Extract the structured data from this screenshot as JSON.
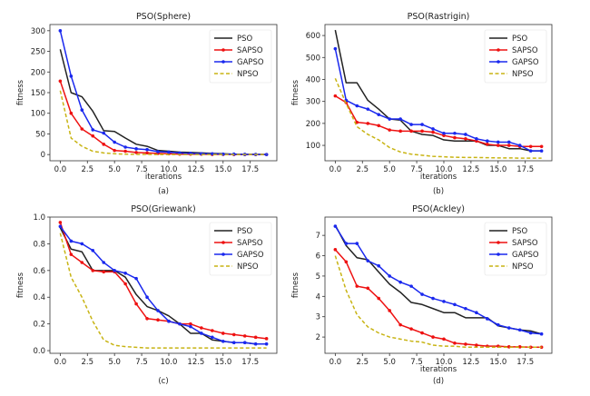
{
  "chart_data": [
    {
      "type": "line",
      "title": "PSO(Sphere)",
      "xlabel": "iterations",
      "ylabel": "fitness",
      "caption": "(a)",
      "xlim": [
        -0.95,
        19.95
      ],
      "ylim": [
        -15,
        315
      ],
      "xticks": [
        0.0,
        2.5,
        5.0,
        7.5,
        10.0,
        12.5,
        15.0,
        17.5
      ],
      "xtick_labels": [
        "0.0",
        "2.5",
        "5.0",
        "7.5",
        "10.0",
        "12.5",
        "15.0",
        "17.5"
      ],
      "yticks": [
        0,
        50,
        100,
        150,
        200,
        250,
        300
      ],
      "ytick_labels": [
        "0",
        "50",
        "100",
        "150",
        "200",
        "250",
        "300"
      ],
      "legend_position": "upper right",
      "x": [
        0,
        1,
        2,
        3,
        4,
        5,
        6,
        7,
        8,
        9,
        10,
        11,
        12,
        13,
        14,
        15,
        16,
        17,
        18,
        19
      ],
      "series": [
        {
          "name": "PSO",
          "color": "#222222",
          "style": "solid",
          "marker": "none",
          "values": [
            255,
            150,
            140,
            105,
            58,
            56,
            40,
            25,
            20,
            10,
            8,
            6,
            5,
            4,
            3,
            2,
            1,
            0.5,
            0.3,
            0
          ]
        },
        {
          "name": "SAPSO",
          "color": "#ee1111",
          "style": "solid",
          "marker": "dot",
          "values": [
            178,
            100,
            62,
            45,
            25,
            10,
            8,
            5,
            4,
            3,
            2,
            1,
            1,
            1,
            0.5,
            0.5,
            0,
            0,
            0,
            0
          ]
        },
        {
          "name": "GAPSO",
          "color": "#1a28ee",
          "style": "solid",
          "marker": "dot",
          "values": [
            300,
            190,
            108,
            60,
            52,
            30,
            18,
            14,
            12,
            7,
            6,
            4,
            3,
            2,
            2,
            1,
            1,
            0.5,
            0.3,
            0
          ]
        },
        {
          "name": "NPSO",
          "color": "#c8b414",
          "style": "dashed",
          "marker": "none",
          "values": [
            155,
            40,
            20,
            8,
            4,
            2,
            1,
            0.5,
            0.3,
            0.2,
            0.1,
            0,
            0,
            0,
            0,
            0,
            0,
            0,
            0,
            0
          ]
        }
      ]
    },
    {
      "type": "line",
      "title": "PSO(Rastrigin)",
      "xlabel": "iterations",
      "ylabel": "fitness",
      "caption": "(b)",
      "xlim": [
        -0.95,
        19.95
      ],
      "ylim": [
        30,
        650
      ],
      "xticks": [
        0.0,
        2.5,
        5.0,
        7.5,
        10.0,
        12.5,
        15.0,
        17.5
      ],
      "xtick_labels": [
        "0.0",
        "2.5",
        "5.0",
        "7.5",
        "10.0",
        "12.5",
        "15.0",
        "17.5"
      ],
      "yticks": [
        100,
        200,
        300,
        400,
        500,
        600
      ],
      "ytick_labels": [
        "100",
        "200",
        "300",
        "400",
        "500",
        "600"
      ],
      "legend_position": "upper right",
      "x": [
        0,
        1,
        2,
        3,
        4,
        5,
        6,
        7,
        8,
        9,
        10,
        11,
        12,
        13,
        14,
        15,
        16,
        17,
        18,
        19
      ],
      "series": [
        {
          "name": "PSO",
          "color": "#222222",
          "style": "solid",
          "marker": "none",
          "values": [
            625,
            385,
            385,
            305,
            265,
            220,
            215,
            165,
            150,
            145,
            125,
            120,
            120,
            120,
            100,
            100,
            85,
            85,
            75,
            75
          ]
        },
        {
          "name": "SAPSO",
          "color": "#ee1111",
          "style": "solid",
          "marker": "dot",
          "values": [
            325,
            295,
            205,
            200,
            190,
            170,
            165,
            165,
            165,
            160,
            145,
            135,
            130,
            120,
            105,
            100,
            100,
            95,
            95,
            95
          ]
        },
        {
          "name": "GAPSO",
          "color": "#1a28ee",
          "style": "solid",
          "marker": "dot",
          "values": [
            540,
            305,
            280,
            265,
            240,
            220,
            220,
            195,
            195,
            175,
            155,
            155,
            150,
            130,
            120,
            115,
            115,
            100,
            75,
            75
          ]
        },
        {
          "name": "NPSO",
          "color": "#c8b414",
          "style": "dashed",
          "marker": "none",
          "values": [
            405,
            290,
            185,
            150,
            125,
            90,
            70,
            60,
            55,
            50,
            48,
            46,
            45,
            45,
            44,
            43,
            43,
            42,
            42,
            42
          ]
        }
      ]
    },
    {
      "type": "line",
      "title": "PSO(Griewank)",
      "xlabel": "",
      "ylabel": "fitness",
      "caption": "(c)",
      "xlim": [
        -0.95,
        19.95
      ],
      "ylim": [
        -0.02,
        1.0
      ],
      "xticks": [
        0.0,
        2.5,
        5.0,
        7.5,
        10.0,
        12.5,
        15.0,
        17.5
      ],
      "xtick_labels": [
        "0.0",
        "2.5",
        "5.0",
        "7.5",
        "10.0",
        "12.5",
        "15.0",
        "17.5"
      ],
      "yticks": [
        0.0,
        0.2,
        0.4,
        0.6,
        0.8,
        1.0
      ],
      "ytick_labels": [
        "0.0",
        "0.2",
        "0.4",
        "0.6",
        "0.8",
        "1.0"
      ],
      "legend_position": "upper right",
      "x": [
        0,
        1,
        2,
        3,
        4,
        5,
        6,
        7,
        8,
        9,
        10,
        11,
        12,
        13,
        14,
        15,
        16,
        17,
        18,
        19
      ],
      "series": [
        {
          "name": "PSO",
          "color": "#222222",
          "style": "solid",
          "marker": "none",
          "values": [
            0.92,
            0.76,
            0.74,
            0.6,
            0.6,
            0.6,
            0.55,
            0.42,
            0.33,
            0.3,
            0.26,
            0.2,
            0.13,
            0.13,
            0.08,
            0.07,
            0.06,
            0.06,
            0.05,
            0.05
          ]
        },
        {
          "name": "SAPSO",
          "color": "#ee1111",
          "style": "solid",
          "marker": "dot",
          "values": [
            0.96,
            0.72,
            0.66,
            0.6,
            0.59,
            0.59,
            0.5,
            0.35,
            0.24,
            0.23,
            0.22,
            0.2,
            0.2,
            0.17,
            0.15,
            0.13,
            0.12,
            0.11,
            0.1,
            0.09
          ]
        },
        {
          "name": "GAPSO",
          "color": "#1a28ee",
          "style": "solid",
          "marker": "dot",
          "values": [
            0.93,
            0.82,
            0.8,
            0.75,
            0.66,
            0.6,
            0.58,
            0.54,
            0.4,
            0.3,
            0.22,
            0.2,
            0.18,
            0.13,
            0.1,
            0.07,
            0.06,
            0.06,
            0.05,
            0.05
          ]
        },
        {
          "name": "NPSO",
          "color": "#c8b414",
          "style": "dashed",
          "marker": "none",
          "values": [
            0.88,
            0.55,
            0.4,
            0.22,
            0.08,
            0.04,
            0.03,
            0.025,
            0.02,
            0.02,
            0.02,
            0.02,
            0.02,
            0.02,
            0.02,
            0.02,
            0.02,
            0.02,
            0.02,
            0.02
          ]
        }
      ]
    },
    {
      "type": "line",
      "title": "PSO(Ackley)",
      "xlabel": "iterations",
      "ylabel": "fitness",
      "caption": "(d)",
      "xlim": [
        -0.95,
        19.95
      ],
      "ylim": [
        1.2,
        7.9
      ],
      "xticks": [
        0.0,
        2.5,
        5.0,
        7.5,
        10.0,
        12.5,
        15.0,
        17.5
      ],
      "xtick_labels": [
        "0.0",
        "2.5",
        "5.0",
        "7.5",
        "10.0",
        "12.5",
        "15.0",
        "17.5"
      ],
      "yticks": [
        2,
        3,
        4,
        5,
        6,
        7
      ],
      "ytick_labels": [
        "2",
        "3",
        "4",
        "5",
        "6",
        "7"
      ],
      "legend_position": "upper right",
      "x": [
        0,
        1,
        2,
        3,
        4,
        5,
        6,
        7,
        8,
        9,
        10,
        11,
        12,
        13,
        14,
        15,
        16,
        17,
        18,
        19
      ],
      "series": [
        {
          "name": "PSO",
          "color": "#222222",
          "style": "solid",
          "marker": "none",
          "values": [
            7.5,
            6.5,
            5.9,
            5.8,
            5.2,
            4.6,
            4.2,
            3.7,
            3.6,
            3.4,
            3.2,
            3.2,
            2.95,
            2.95,
            2.95,
            2.55,
            2.45,
            2.35,
            2.3,
            2.15
          ]
        },
        {
          "name": "SAPSO",
          "color": "#ee1111",
          "style": "solid",
          "marker": "dot",
          "values": [
            6.3,
            5.7,
            4.5,
            4.4,
            3.9,
            3.3,
            2.6,
            2.4,
            2.2,
            2.0,
            1.9,
            1.7,
            1.65,
            1.6,
            1.55,
            1.55,
            1.52,
            1.52,
            1.5,
            1.5
          ]
        },
        {
          "name": "GAPSO",
          "color": "#1a28ee",
          "style": "solid",
          "marker": "dot",
          "values": [
            7.45,
            6.6,
            6.6,
            5.75,
            5.5,
            5.0,
            4.7,
            4.5,
            4.1,
            3.9,
            3.75,
            3.6,
            3.4,
            3.2,
            2.9,
            2.6,
            2.45,
            2.35,
            2.2,
            2.15
          ]
        },
        {
          "name": "NPSO",
          "color": "#c8b414",
          "style": "dashed",
          "marker": "none",
          "values": [
            6.0,
            4.3,
            3.1,
            2.5,
            2.2,
            2.0,
            1.9,
            1.8,
            1.75,
            1.6,
            1.55,
            1.55,
            1.5,
            1.5,
            1.5,
            1.5,
            1.5,
            1.5,
            1.5,
            1.5
          ]
        }
      ]
    }
  ]
}
